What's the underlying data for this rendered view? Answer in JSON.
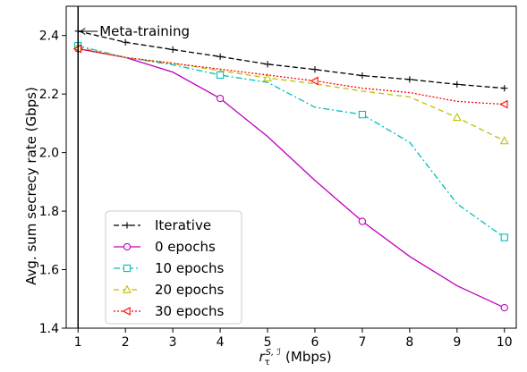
{
  "chart_data": {
    "type": "line",
    "title": "",
    "xlabel": {
      "base": "r",
      "sub": "τ",
      "sup": "S, ℐ",
      "unit": "(Mbps)"
    },
    "ylabel": "Avg. sum secrecy rate (Gbps)",
    "x": [
      1,
      2,
      3,
      4,
      5,
      6,
      7,
      8,
      9,
      10
    ],
    "xlim": [
      0.75,
      10.25
    ],
    "ylim": [
      1.4,
      2.5
    ],
    "xticks": [
      "1",
      "2",
      "3",
      "4",
      "5",
      "6",
      "7",
      "8",
      "9",
      "10"
    ],
    "yticks": [
      "1.4",
      "1.6",
      "1.8",
      "2.0",
      "2.2",
      "2.4"
    ],
    "ytick_values": [
      1.4,
      1.6,
      1.8,
      2.0,
      2.2,
      2.4
    ],
    "grid": false,
    "legend_position": "bottom-left",
    "annotation": {
      "text": "Meta-training",
      "x": 1
    },
    "series": [
      {
        "name": "Iterative",
        "values": [
          2.415,
          2.377,
          2.352,
          2.328,
          2.302,
          2.284,
          2.263,
          2.25,
          2.233,
          2.22
        ],
        "color": "#000000",
        "dash": "6,3",
        "marker": "plus",
        "marker_every": 1
      },
      {
        "name": "0 epochs",
        "values": [
          2.355,
          2.325,
          2.275,
          2.185,
          2.055,
          1.905,
          1.765,
          1.645,
          1.545,
          1.47
        ],
        "color": "#bf00bf",
        "dash": "",
        "marker": "circle",
        "marker_every": 3
      },
      {
        "name": "10 epochs",
        "values": [
          2.365,
          2.325,
          2.3,
          2.265,
          2.24,
          2.155,
          2.13,
          2.035,
          1.825,
          1.71
        ],
        "color": "#00bfbf",
        "dash": "7,3,2,3",
        "marker": "square",
        "marker_every": 3
      },
      {
        "name": "20 epochs",
        "values": [
          2.36,
          2.325,
          2.305,
          2.28,
          2.255,
          2.235,
          2.21,
          2.19,
          2.12,
          2.04
        ],
        "color": "#bfbf00",
        "dash": "6,4",
        "marker": "triangle-up",
        "marker_every": 4
      },
      {
        "name": "30 epochs",
        "values": [
          2.355,
          2.325,
          2.305,
          2.285,
          2.265,
          2.245,
          2.22,
          2.205,
          2.175,
          2.165
        ],
        "color": "#ff0000",
        "dash": "2,2",
        "marker": "triangle-left",
        "marker_every": 5
      }
    ]
  }
}
